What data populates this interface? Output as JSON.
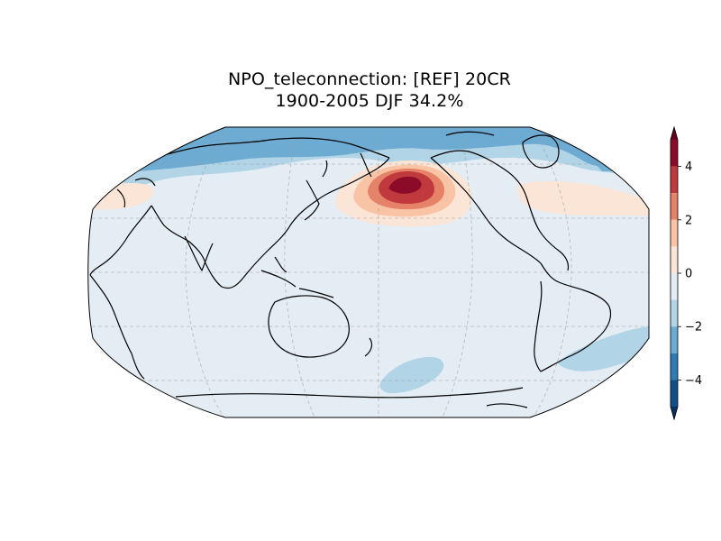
{
  "title": {
    "line1": "NPO_teleconnection: [REF] 20CR",
    "line2": "1900-2005 DJF 34.2%"
  },
  "map": {
    "projection": "Robinson, centered on the Pacific",
    "background_level_color": "#e4ecf4",
    "anomaly_fields": [
      {
        "name": "north-pacific-high-core",
        "level": 5,
        "color": "#8b0b28"
      },
      {
        "name": "north-pacific-high-inner",
        "level": 4,
        "color": "#c03a3d"
      },
      {
        "name": "north-pacific-high-mid",
        "level": 3,
        "color": "#e58268"
      },
      {
        "name": "north-pacific-high-outer",
        "level": 2,
        "color": "#f9c4a5"
      },
      {
        "name": "north-pacific-high-edge",
        "level": 1,
        "color": "#fbe5d7"
      },
      {
        "name": "arctic-low",
        "level": -2,
        "color": "#b2d4e7"
      },
      {
        "name": "arctic-low-strong",
        "level": -3,
        "color": "#6eabd2"
      },
      {
        "name": "southern-pacific-low",
        "level": -2,
        "color": "#b2d4e7"
      },
      {
        "name": "south-atlantic-low",
        "level": -2,
        "color": "#b2d4e7"
      }
    ]
  },
  "colorbar": {
    "ticks": [
      "4",
      "2",
      "0",
      "−2",
      "−4"
    ],
    "tick_values": [
      4,
      2,
      0,
      -2,
      -4
    ],
    "range": [
      -5,
      5
    ],
    "extend": "both",
    "levels": [
      {
        "from": 4,
        "to": 5,
        "color": "#8b0b28"
      },
      {
        "from": 3,
        "to": 4,
        "color": "#c03a3d"
      },
      {
        "from": 2,
        "to": 3,
        "color": "#e58268"
      },
      {
        "from": 1,
        "to": 2,
        "color": "#f9c4a5"
      },
      {
        "from": 0,
        "to": 1,
        "color": "#fbe5d7"
      },
      {
        "from": -1,
        "to": 0,
        "color": "#e4ecf4"
      },
      {
        "from": -2,
        "to": -1,
        "color": "#b2d4e7"
      },
      {
        "from": -3,
        "to": -2,
        "color": "#6eabd2"
      },
      {
        "from": -4,
        "to": -3,
        "color": "#2f7bb5"
      },
      {
        "from": -5,
        "to": -4,
        "color": "#134d88"
      }
    ],
    "over_color": "#67001f",
    "under_color": "#053061"
  }
}
